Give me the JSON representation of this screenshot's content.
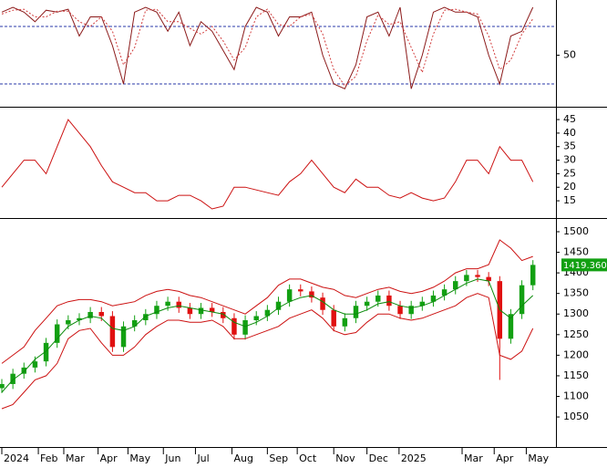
{
  "chart_data": [
    {
      "type": "line",
      "ylim": [
        -3.8,
        102.9
      ],
      "yticks": [
        50
      ],
      "xlim": [
        0,
        50
      ],
      "hlines": [
        20,
        80
      ],
      "hline_color": "#2a3aa8",
      "series": [
        {
          "color": "#8b1a1a",
          "dash": false,
          "values": [
            95,
            100,
            95,
            85,
            97,
            95,
            98,
            70,
            90,
            90,
            60,
            20,
            95,
            100,
            95,
            75,
            95,
            60,
            85,
            75,
            55,
            35,
            80,
            100,
            95,
            70,
            90,
            90,
            95,
            50,
            20,
            15,
            40,
            90,
            95,
            70,
            100,
            15,
            50,
            95,
            100,
            95,
            95,
            90,
            50,
            20,
            70,
            75,
            100
          ]
        },
        {
          "color": "#d23c3c",
          "dash": true,
          "values": [
            93,
            97,
            98,
            90,
            90,
            96,
            96,
            85,
            80,
            90,
            75,
            40,
            58,
            97,
            98,
            85,
            85,
            78,
            72,
            80,
            65,
            45,
            58,
            90,
            98,
            82,
            80,
            90,
            93,
            72,
            35,
            18,
            28,
            65,
            92,
            82,
            85,
            58,
            32,
            72,
            97,
            98,
            95,
            93,
            70,
            35,
            45,
            72,
            88
          ]
        }
      ]
    },
    {
      "type": "line",
      "ylim": [
        9.3,
        49.4
      ],
      "yticks": [
        15,
        20,
        25,
        30,
        35,
        40,
        45
      ],
      "xlim": [
        0,
        50
      ],
      "series": [
        {
          "color": "#cc1111",
          "dash": false,
          "values": [
            20,
            25,
            30,
            30,
            25,
            35,
            45,
            40,
            35,
            28,
            22,
            20,
            18,
            18,
            15,
            15,
            17,
            17,
            15,
            12,
            13,
            20,
            20,
            19,
            18,
            17,
            22,
            25,
            30,
            25,
            20,
            18,
            23,
            20,
            20,
            17,
            16,
            18,
            16,
            15,
            16,
            22,
            30,
            30,
            25,
            35,
            30,
            30,
            22
          ]
        }
      ]
    },
    {
      "type": "candlestick",
      "ylim": [
        977,
        1531
      ],
      "yticks": [
        1050,
        1100,
        1150,
        1200,
        1250,
        1300,
        1350,
        1400,
        1450,
        1500
      ],
      "xlim": [
        0,
        50
      ],
      "xticks": [
        {
          "value": 0,
          "label": "2024"
        },
        {
          "value": 3.3,
          "label": "Feb"
        },
        {
          "value": 5.6,
          "label": "Mar"
        },
        {
          "value": 8.7,
          "label": "Apr"
        },
        {
          "value": 11.4,
          "label": "May"
        },
        {
          "value": 14.6,
          "label": "Jun"
        },
        {
          "value": 17.5,
          "label": "Jul"
        },
        {
          "value": 20.8,
          "label": "Aug"
        },
        {
          "value": 24,
          "label": "Sep"
        },
        {
          "value": 26.7,
          "label": "Oct"
        },
        {
          "value": 30,
          "label": "Nov"
        },
        {
          "value": 33,
          "label": "Dec"
        },
        {
          "value": 35.9,
          "label": "2025"
        },
        {
          "value": 41.6,
          "label": "Mar"
        },
        {
          "value": 44.5,
          "label": "Apr"
        },
        {
          "value": 47.4,
          "label": "May"
        }
      ],
      "up_color": "#12a012",
      "down_color": "#e01010",
      "open": [
        1120,
        1130,
        1155,
        1170,
        1185,
        1230,
        1275,
        1285,
        1290,
        1305,
        1295,
        1220,
        1270,
        1285,
        1300,
        1320,
        1330,
        1315,
        1300,
        1315,
        1305,
        1290,
        1250,
        1285,
        1295,
        1310,
        1330,
        1360,
        1355,
        1340,
        1310,
        1270,
        1290,
        1320,
        1330,
        1345,
        1320,
        1300,
        1320,
        1330,
        1345,
        1360,
        1380,
        1395,
        1390,
        1380,
        1240,
        1300,
        1370
      ],
      "high": [
        1142,
        1167,
        1182,
        1197,
        1242,
        1287,
        1297,
        1302,
        1317,
        1317,
        1307,
        1282,
        1297,
        1312,
        1332,
        1342,
        1342,
        1327,
        1327,
        1327,
        1317,
        1302,
        1297,
        1307,
        1322,
        1342,
        1372,
        1372,
        1367,
        1352,
        1322,
        1302,
        1332,
        1342,
        1357,
        1357,
        1332,
        1332,
        1342,
        1357,
        1372,
        1392,
        1407,
        1407,
        1402,
        1392,
        1312,
        1382,
        1431
      ],
      "low": [
        1108,
        1118,
        1143,
        1158,
        1173,
        1218,
        1263,
        1273,
        1278,
        1283,
        1208,
        1208,
        1258,
        1273,
        1288,
        1308,
        1303,
        1288,
        1288,
        1293,
        1278,
        1238,
        1238,
        1273,
        1283,
        1298,
        1318,
        1343,
        1328,
        1298,
        1258,
        1258,
        1278,
        1308,
        1318,
        1308,
        1288,
        1288,
        1308,
        1318,
        1333,
        1348,
        1368,
        1378,
        1368,
        1140,
        1228,
        1288,
        1358
      ],
      "close": [
        1130,
        1155,
        1170,
        1185,
        1230,
        1275,
        1285,
        1290,
        1305,
        1295,
        1220,
        1270,
        1285,
        1300,
        1320,
        1330,
        1315,
        1300,
        1315,
        1305,
        1290,
        1250,
        1285,
        1295,
        1310,
        1330,
        1360,
        1355,
        1340,
        1310,
        1270,
        1290,
        1320,
        1330,
        1345,
        1320,
        1300,
        1320,
        1330,
        1345,
        1360,
        1380,
        1395,
        1390,
        1380,
        1240,
        1300,
        1370,
        1419.36
      ],
      "last_label": "1419.360",
      "last_label_color": "#12a012",
      "series": [
        {
          "color": "#cc1111",
          "dash": false,
          "values": [
            1180,
            1200,
            1220,
            1260,
            1290,
            1320,
            1330,
            1335,
            1335,
            1330,
            1320,
            1325,
            1330,
            1345,
            1355,
            1360,
            1355,
            1345,
            1340,
            1330,
            1320,
            1310,
            1300,
            1320,
            1340,
            1370,
            1385,
            1385,
            1375,
            1365,
            1360,
            1345,
            1340,
            1350,
            1360,
            1365,
            1355,
            1350,
            1355,
            1365,
            1380,
            1400,
            1410,
            1410,
            1420,
            1480,
            1460,
            1430,
            1440
          ]
        },
        {
          "color": "#0a8a0a",
          "dash": false,
          "values": [
            1110,
            1140,
            1160,
            1190,
            1210,
            1240,
            1270,
            1285,
            1295,
            1290,
            1265,
            1260,
            1270,
            1295,
            1305,
            1315,
            1320,
            1315,
            1310,
            1305,
            1300,
            1280,
            1270,
            1280,
            1295,
            1315,
            1330,
            1340,
            1345,
            1330,
            1310,
            1300,
            1300,
            1310,
            1325,
            1330,
            1320,
            1315,
            1320,
            1330,
            1345,
            1360,
            1375,
            1385,
            1380,
            1310,
            1290,
            1320,
            1345
          ]
        },
        {
          "color": "#cc1111",
          "dash": false,
          "values": [
            1070,
            1080,
            1110,
            1140,
            1150,
            1180,
            1240,
            1260,
            1265,
            1230,
            1200,
            1200,
            1220,
            1250,
            1270,
            1285,
            1285,
            1280,
            1280,
            1285,
            1270,
            1240,
            1240,
            1250,
            1260,
            1270,
            1290,
            1300,
            1310,
            1290,
            1260,
            1250,
            1255,
            1280,
            1300,
            1300,
            1290,
            1285,
            1290,
            1300,
            1310,
            1320,
            1340,
            1350,
            1340,
            1200,
            1190,
            1210,
            1265
          ]
        }
      ]
    }
  ]
}
